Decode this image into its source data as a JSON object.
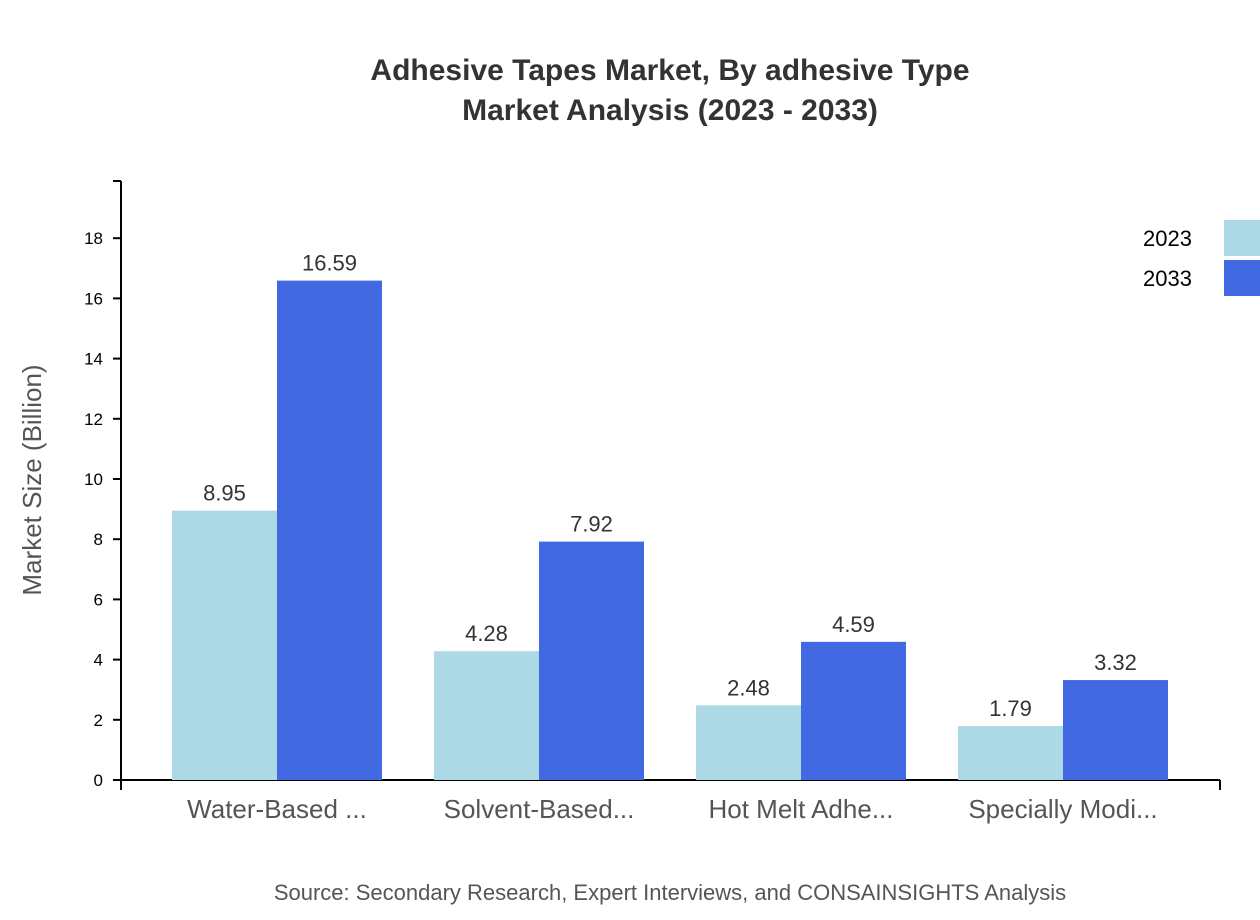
{
  "chart_data": {
    "type": "bar",
    "title": "Adhesive Tapes Market, By adhesive Type",
    "subtitle": "Market Analysis (2023 - 2033)",
    "xlabel": "",
    "ylabel": "Market Size (Billion)",
    "ylim": [
      0,
      19.9
    ],
    "yticks": [
      0,
      2,
      4,
      6,
      8,
      10,
      12,
      14,
      16,
      18
    ],
    "categories": [
      "Water-Based ...",
      "Solvent-Based...",
      "Hot Melt Adhe...",
      "Specially Modi..."
    ],
    "series": [
      {
        "name": "2023",
        "color": "#add8e6",
        "values": [
          8.95,
          4.28,
          2.48,
          1.79
        ]
      },
      {
        "name": "2033",
        "color": "#4169e1",
        "values": [
          16.59,
          7.92,
          4.59,
          3.32
        ]
      }
    ],
    "legend_position": "top-right",
    "grid": false,
    "source": "Source: Secondary Research, Expert Interviews, and CONSAINSIGHTS Analysis"
  }
}
